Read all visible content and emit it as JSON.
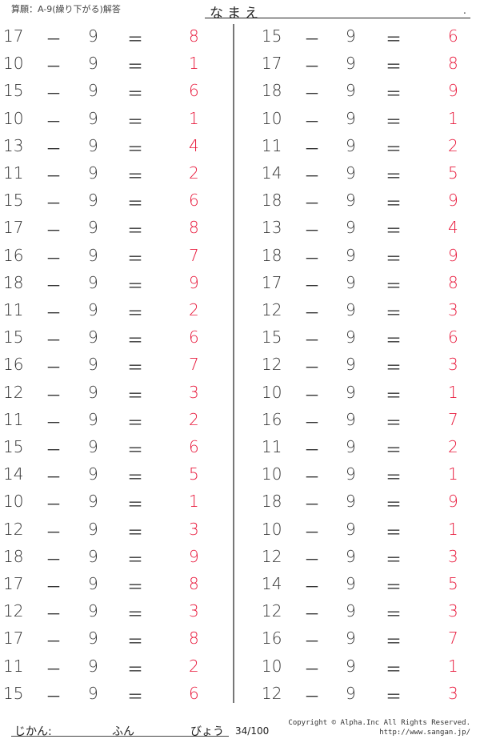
{
  "header": {
    "title": "算願：A-9(繰り下がる)解答",
    "name_label": "なまえ",
    "name_dot": "."
  },
  "colors": {
    "answer": "#e8173a",
    "text": "#333333",
    "divider": "#777777"
  },
  "operator": "－",
  "equals": "＝",
  "left_problems": [
    {
      "a": "17",
      "b": "9",
      "ans": "8"
    },
    {
      "a": "10",
      "b": "9",
      "ans": "1"
    },
    {
      "a": "15",
      "b": "9",
      "ans": "6"
    },
    {
      "a": "10",
      "b": "9",
      "ans": "1"
    },
    {
      "a": "13",
      "b": "9",
      "ans": "4"
    },
    {
      "a": "11",
      "b": "9",
      "ans": "2"
    },
    {
      "a": "15",
      "b": "9",
      "ans": "6"
    },
    {
      "a": "17",
      "b": "9",
      "ans": "8"
    },
    {
      "a": "16",
      "b": "9",
      "ans": "7"
    },
    {
      "a": "18",
      "b": "9",
      "ans": "9"
    },
    {
      "a": "11",
      "b": "9",
      "ans": "2"
    },
    {
      "a": "15",
      "b": "9",
      "ans": "6"
    },
    {
      "a": "16",
      "b": "9",
      "ans": "7"
    },
    {
      "a": "12",
      "b": "9",
      "ans": "3"
    },
    {
      "a": "11",
      "b": "9",
      "ans": "2"
    },
    {
      "a": "15",
      "b": "9",
      "ans": "6"
    },
    {
      "a": "14",
      "b": "9",
      "ans": "5"
    },
    {
      "a": "10",
      "b": "9",
      "ans": "1"
    },
    {
      "a": "12",
      "b": "9",
      "ans": "3"
    },
    {
      "a": "18",
      "b": "9",
      "ans": "9"
    },
    {
      "a": "17",
      "b": "9",
      "ans": "8"
    },
    {
      "a": "12",
      "b": "9",
      "ans": "3"
    },
    {
      "a": "17",
      "b": "9",
      "ans": "8"
    },
    {
      "a": "11",
      "b": "9",
      "ans": "2"
    },
    {
      "a": "15",
      "b": "9",
      "ans": "6"
    }
  ],
  "right_problems": [
    {
      "a": "15",
      "b": "9",
      "ans": "6"
    },
    {
      "a": "17",
      "b": "9",
      "ans": "8"
    },
    {
      "a": "18",
      "b": "9",
      "ans": "9"
    },
    {
      "a": "10",
      "b": "9",
      "ans": "1"
    },
    {
      "a": "11",
      "b": "9",
      "ans": "2"
    },
    {
      "a": "14",
      "b": "9",
      "ans": "5"
    },
    {
      "a": "18",
      "b": "9",
      "ans": "9"
    },
    {
      "a": "13",
      "b": "9",
      "ans": "4"
    },
    {
      "a": "18",
      "b": "9",
      "ans": "9"
    },
    {
      "a": "17",
      "b": "9",
      "ans": "8"
    },
    {
      "a": "12",
      "b": "9",
      "ans": "3"
    },
    {
      "a": "15",
      "b": "9",
      "ans": "6"
    },
    {
      "a": "12",
      "b": "9",
      "ans": "3"
    },
    {
      "a": "10",
      "b": "9",
      "ans": "1"
    },
    {
      "a": "16",
      "b": "9",
      "ans": "7"
    },
    {
      "a": "11",
      "b": "9",
      "ans": "2"
    },
    {
      "a": "10",
      "b": "9",
      "ans": "1"
    },
    {
      "a": "18",
      "b": "9",
      "ans": "9"
    },
    {
      "a": "10",
      "b": "9",
      "ans": "1"
    },
    {
      "a": "12",
      "b": "9",
      "ans": "3"
    },
    {
      "a": "14",
      "b": "9",
      "ans": "5"
    },
    {
      "a": "12",
      "b": "9",
      "ans": "3"
    },
    {
      "a": "16",
      "b": "9",
      "ans": "7"
    },
    {
      "a": "10",
      "b": "9",
      "ans": "1"
    },
    {
      "a": "12",
      "b": "9",
      "ans": "3"
    }
  ],
  "footer": {
    "time_label": "じかん:",
    "minutes_label": "ふん",
    "seconds_label": "びょう",
    "page": "34/100",
    "copyright": "Copyright © Alpha.Inc All Rights Reserved.",
    "url": "http://www.sangan.jp/"
  }
}
